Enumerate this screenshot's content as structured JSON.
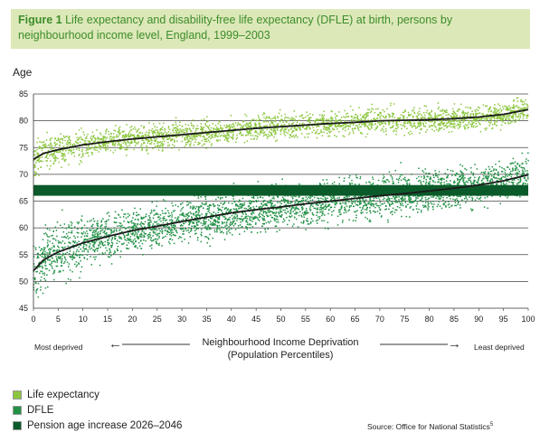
{
  "title": {
    "figure_label": "Figure 1",
    "text": "Life expectancy and disability-free life expectancy (DFLE) at birth, persons by neighbourhood income level, England, 1999–2003"
  },
  "colors": {
    "title_bg": "#dde8b9",
    "title_text": "#3c8d2a",
    "life_expectancy": "#8cc63f",
    "dfle": "#229146",
    "pension_band": "#0b5a2a",
    "trend_line": "#1b1b1b"
  },
  "xaxis": {
    "title_line1": "Neighbourhood Income Deprivation",
    "title_line2": "(Population Percentiles)",
    "left_annotation": "Most deprived",
    "right_annotation": "Least deprived"
  },
  "legend": [
    {
      "label": "Life expectancy",
      "color": "#8cc63f"
    },
    {
      "label": "DFLE",
      "color": "#229146"
    },
    {
      "label": "Pension age increase 2026–2046",
      "color": "#0b5a2a"
    }
  ],
  "source": {
    "text": "Source: Office for National Statistics",
    "superscript": "5"
  },
  "chart_data": {
    "type": "scatter",
    "ylabel": "Age",
    "xlabel": "Neighbourhood Income Deprivation (Population Percentiles)",
    "xlim": [
      0,
      100
    ],
    "ylim": [
      45,
      85
    ],
    "xticks": [
      0,
      5,
      10,
      15,
      20,
      25,
      30,
      35,
      40,
      45,
      50,
      55,
      60,
      65,
      70,
      75,
      80,
      85,
      90,
      95,
      100
    ],
    "yticks": [
      45,
      50,
      55,
      60,
      65,
      70,
      75,
      80,
      85
    ],
    "grid": "horizontal",
    "band": {
      "name": "Pension age increase 2026–2046",
      "ymin": 66,
      "ymax": 68
    },
    "series": [
      {
        "name": "Life expectancy",
        "trend": {
          "x": [
            0,
            2,
            5,
            10,
            15,
            20,
            25,
            30,
            35,
            40,
            45,
            50,
            55,
            60,
            65,
            70,
            75,
            80,
            85,
            90,
            95,
            100
          ],
          "y": [
            72.8,
            73.9,
            74.6,
            75.5,
            76.1,
            76.6,
            77.0,
            77.4,
            77.8,
            78.2,
            78.6,
            78.9,
            79.2,
            79.5,
            79.7,
            80.0,
            80.1,
            80.2,
            80.4,
            80.7,
            81.2,
            82.1
          ]
        },
        "spread": 1.4
      },
      {
        "name": "DFLE",
        "trend": {
          "x": [
            0,
            2,
            5,
            10,
            15,
            20,
            25,
            30,
            35,
            40,
            45,
            50,
            55,
            60,
            65,
            70,
            75,
            80,
            85,
            90,
            95,
            100
          ],
          "y": [
            52.0,
            54.0,
            55.5,
            57.2,
            58.4,
            59.5,
            60.3,
            61.2,
            62.0,
            62.8,
            63.4,
            63.9,
            64.5,
            65.0,
            65.5,
            66.0,
            66.4,
            66.9,
            67.4,
            68.0,
            68.8,
            69.9
          ]
        },
        "spread": 2.4
      }
    ]
  }
}
